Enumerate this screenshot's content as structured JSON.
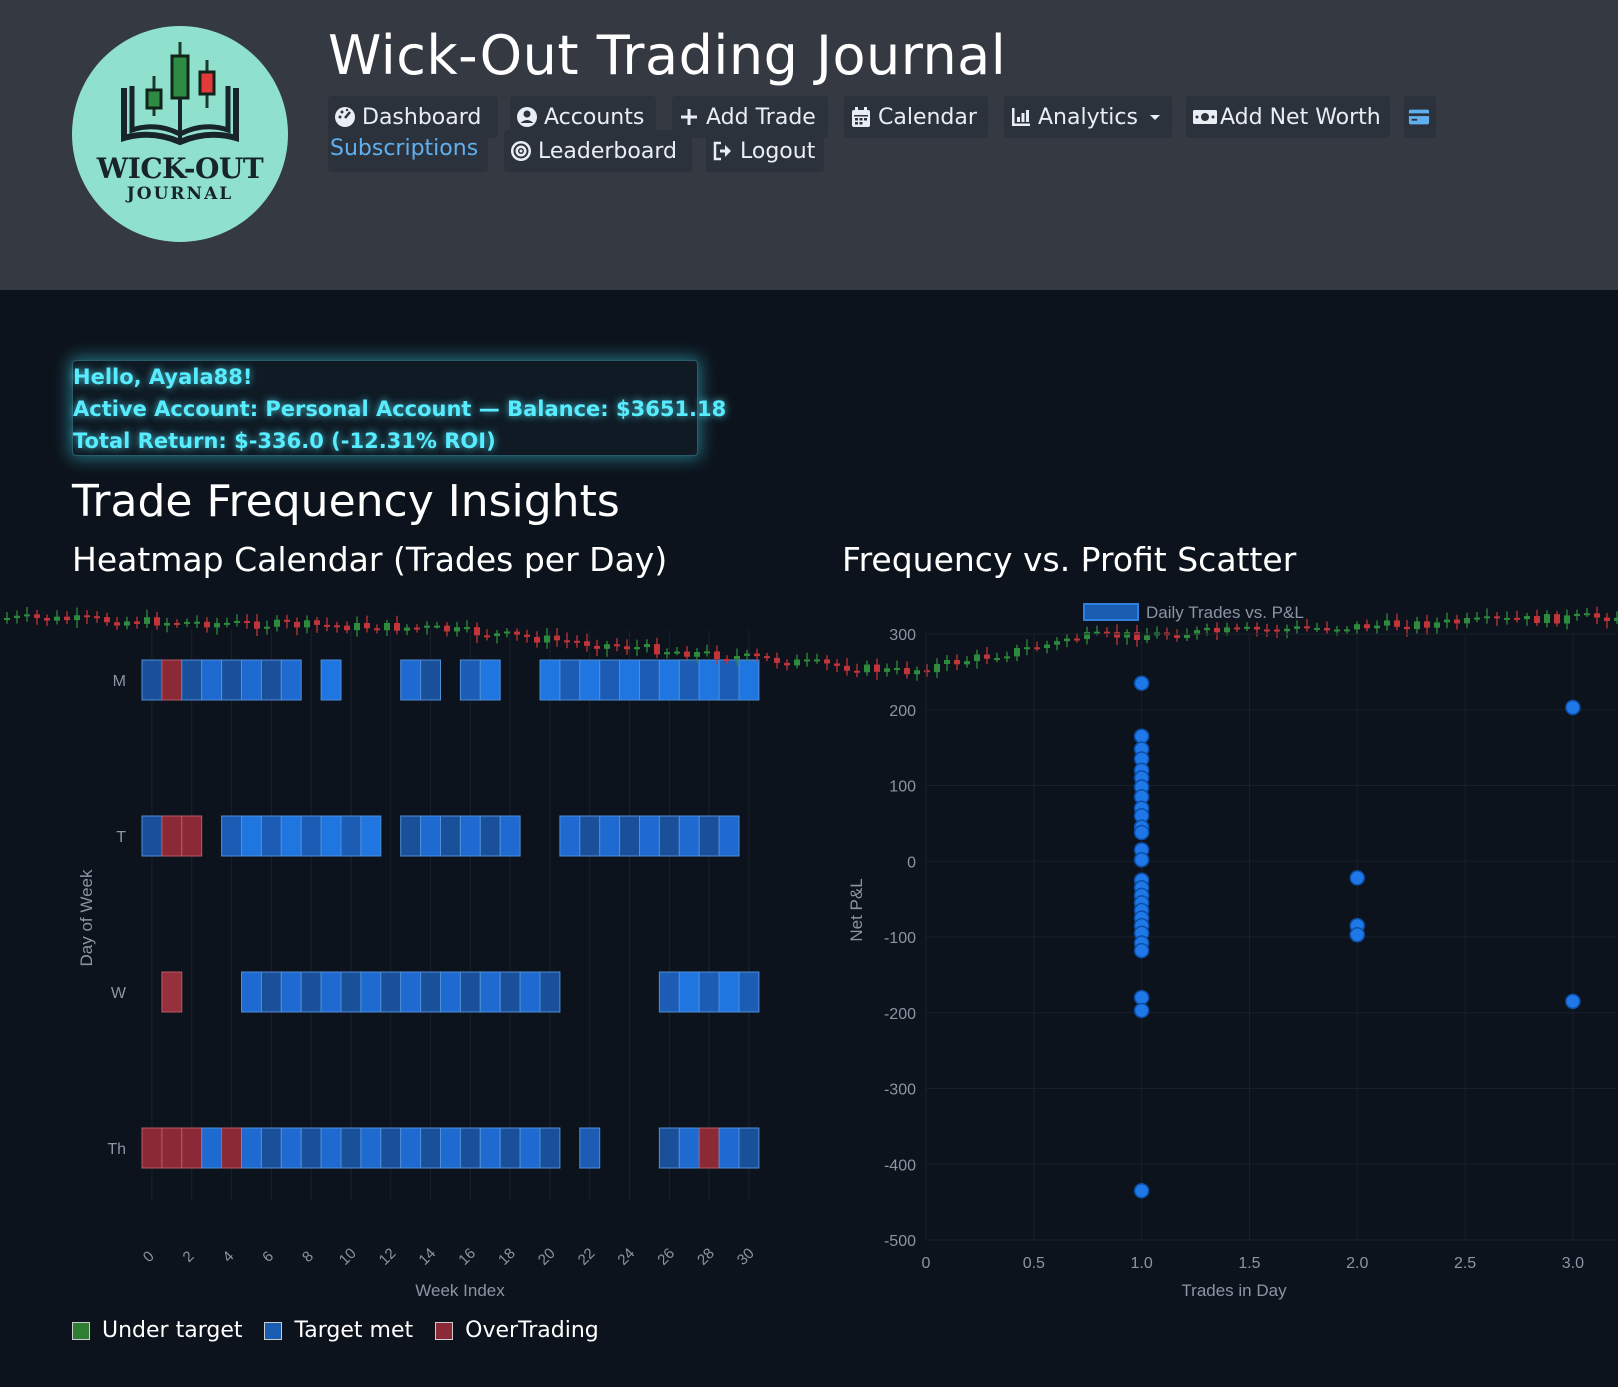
{
  "app": {
    "title": "Wick-Out Trading Journal",
    "logo_line1": "WICK-OUT",
    "logo_line2": "JOURNAL"
  },
  "nav": {
    "dashboard": "Dashboard",
    "accounts": "Accounts",
    "add_trade": "Add Trade",
    "calendar": "Calendar",
    "analytics": "Analytics",
    "add_net_worth": "Add Net Worth",
    "subscriptions": "Subscriptions",
    "leaderboard": "Leaderboard",
    "logout": "Logout"
  },
  "greeting": {
    "hello": "Hello, Ayala88!",
    "account": "Active Account: Personal Account — Balance: $3651.18",
    "return": "Total Return: $-336.0 (-12.31% ROI)"
  },
  "page": {
    "title": "Trade Frequency Insights",
    "heatmap_title": "Heatmap Calendar (Trades per Day)",
    "scatter_title": "Frequency vs. Profit Scatter"
  },
  "legend": {
    "under": "Under target",
    "met": "Target met",
    "over": "OverTrading",
    "under_color": "#2e7d32",
    "met_color": "#1a5cb0",
    "over_color": "#8b2a36"
  },
  "chart_data": [
    {
      "type": "heatmap",
      "title": "Heatmap Calendar (Trades per Day)",
      "xlabel": "Week Index",
      "ylabel": "Day of Week",
      "x_ticks": [
        "0",
        "2",
        "4",
        "6",
        "8",
        "10",
        "12",
        "14",
        "16",
        "18",
        "20",
        "22",
        "24",
        "26",
        "28",
        "30"
      ],
      "y_categories": [
        "M",
        "T",
        "W",
        "Th"
      ],
      "xlim": [
        0,
        32
      ],
      "cells": {
        "M": {
          "weeks": [
            0,
            1,
            2,
            3,
            4,
            5,
            6,
            7,
            9,
            13,
            14,
            16,
            17,
            20,
            21,
            22,
            23,
            24,
            25,
            26,
            27,
            28,
            29,
            30
          ],
          "status": [
            "met",
            "over",
            "met",
            "met",
            "met",
            "met",
            "met",
            "met",
            "met",
            "met",
            "met",
            "met",
            "met",
            "met",
            "met",
            "met",
            "met",
            "met",
            "met",
            "met",
            "met",
            "met",
            "met",
            "met"
          ]
        },
        "T": {
          "weeks": [
            0,
            1,
            2,
            4,
            5,
            6,
            7,
            8,
            9,
            10,
            11,
            13,
            14,
            15,
            16,
            17,
            18,
            21,
            22,
            23,
            24,
            25,
            26,
            27,
            28,
            29
          ],
          "status": [
            "met",
            "over",
            "over",
            "met",
            "met",
            "met",
            "met",
            "met",
            "met",
            "met",
            "met",
            "met",
            "met",
            "met",
            "met",
            "met",
            "met",
            "met",
            "met",
            "met",
            "met",
            "met",
            "met",
            "met",
            "met",
            "met"
          ]
        },
        "W": {
          "weeks": [
            1,
            5,
            6,
            7,
            8,
            9,
            10,
            11,
            12,
            13,
            14,
            15,
            16,
            17,
            18,
            19,
            20,
            26,
            27,
            28,
            29,
            30
          ],
          "status": [
            "over",
            "met",
            "met",
            "met",
            "met",
            "met",
            "met",
            "met",
            "met",
            "met",
            "met",
            "met",
            "met",
            "met",
            "met",
            "met",
            "met",
            "met",
            "met",
            "met",
            "met",
            "met"
          ]
        },
        "Th": {
          "weeks": [
            0,
            1,
            2,
            3,
            4,
            5,
            6,
            7,
            8,
            9,
            10,
            11,
            12,
            13,
            14,
            15,
            16,
            17,
            18,
            19,
            20,
            22,
            26,
            27,
            28,
            29,
            30
          ],
          "status": [
            "over",
            "over",
            "over",
            "met",
            "over",
            "met",
            "met",
            "met",
            "met",
            "met",
            "met",
            "met",
            "met",
            "met",
            "met",
            "met",
            "met",
            "met",
            "met",
            "met",
            "met",
            "met",
            "met",
            "met",
            "over",
            "met",
            "met"
          ]
        }
      }
    },
    {
      "type": "scatter",
      "title": "Frequency vs. Profit Scatter",
      "legend": "Daily Trades vs. P&L",
      "xlabel": "Trades in Day",
      "ylabel": "Net P&L",
      "xlim": [
        0,
        3.2
      ],
      "ylim": [
        -500,
        300
      ],
      "x_ticks": [
        "0",
        "0.5",
        "1.0",
        "1.5",
        "2.0",
        "2.5",
        "3.0"
      ],
      "y_ticks": [
        "300",
        "200",
        "100",
        "0",
        "-100",
        "-200",
        "-300",
        "-400",
        "-500"
      ],
      "points": [
        {
          "x": 1,
          "y": 235
        },
        {
          "x": 1,
          "y": 165
        },
        {
          "x": 1,
          "y": 148
        },
        {
          "x": 1,
          "y": 135
        },
        {
          "x": 1,
          "y": 120
        },
        {
          "x": 1,
          "y": 110
        },
        {
          "x": 1,
          "y": 98
        },
        {
          "x": 1,
          "y": 85
        },
        {
          "x": 1,
          "y": 70
        },
        {
          "x": 1,
          "y": 60
        },
        {
          "x": 1,
          "y": 45
        },
        {
          "x": 1,
          "y": 38
        },
        {
          "x": 1,
          "y": 15
        },
        {
          "x": 1,
          "y": 2
        },
        {
          "x": 1,
          "y": -25
        },
        {
          "x": 1,
          "y": -35
        },
        {
          "x": 1,
          "y": -45
        },
        {
          "x": 1,
          "y": -55
        },
        {
          "x": 1,
          "y": -65
        },
        {
          "x": 1,
          "y": -75
        },
        {
          "x": 1,
          "y": -85
        },
        {
          "x": 1,
          "y": -95
        },
        {
          "x": 1,
          "y": -108
        },
        {
          "x": 1,
          "y": -118
        },
        {
          "x": 1,
          "y": -180
        },
        {
          "x": 1,
          "y": -197
        },
        {
          "x": 1,
          "y": -435
        },
        {
          "x": 2,
          "y": -22
        },
        {
          "x": 2,
          "y": -85
        },
        {
          "x": 2,
          "y": -97
        },
        {
          "x": 3,
          "y": 203
        },
        {
          "x": 3,
          "y": -185
        }
      ]
    }
  ]
}
